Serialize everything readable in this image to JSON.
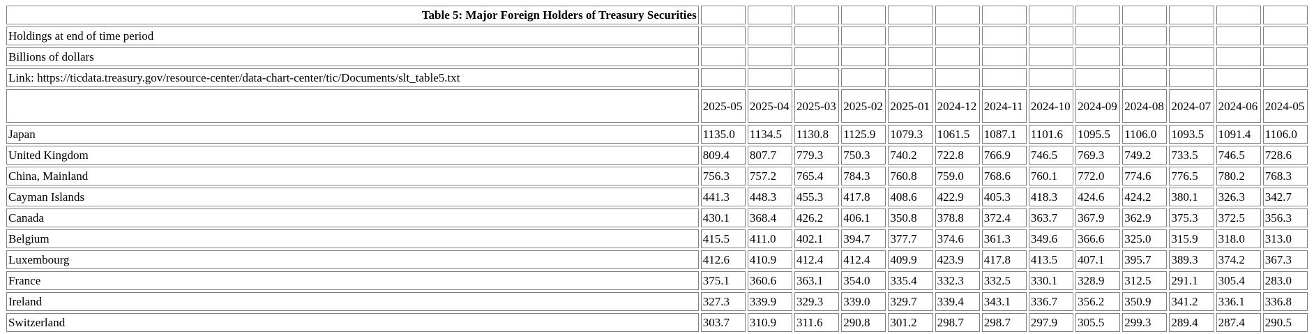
{
  "meta": {
    "title": "Table 5: Major Foreign Holders of Treasury Securities",
    "subtitle": "Holdings at end of time period",
    "unit": "Billions of dollars",
    "link": "Link: https://ticdata.treasury.gov/resource-center/data-chart-center/tic/Documents/slt_table5.txt"
  },
  "periods": [
    "2025-05",
    "2025-04",
    "2025-03",
    "2025-02",
    "2025-01",
    "2024-12",
    "2024-11",
    "2024-10",
    "2024-09",
    "2024-08",
    "2024-07",
    "2024-06",
    "2024-05"
  ],
  "rows": [
    {
      "country": "Japan",
      "values": [
        "1135.0",
        "1134.5",
        "1130.8",
        "1125.9",
        "1079.3",
        "1061.5",
        "1087.1",
        "1101.6",
        "1095.5",
        "1106.0",
        "1093.5",
        "1091.4",
        "1106.0"
      ]
    },
    {
      "country": "United Kingdom",
      "values": [
        "809.4",
        "807.7",
        "779.3",
        "750.3",
        "740.2",
        "722.8",
        "766.9",
        "746.5",
        "769.3",
        "749.2",
        "733.5",
        "746.5",
        "728.6"
      ]
    },
    {
      "country": "China, Mainland",
      "values": [
        "756.3",
        "757.2",
        "765.4",
        "784.3",
        "760.8",
        "759.0",
        "768.6",
        "760.1",
        "772.0",
        "774.6",
        "776.5",
        "780.2",
        "768.3"
      ]
    },
    {
      "country": "Cayman Islands",
      "values": [
        "441.3",
        "448.3",
        "455.3",
        "417.8",
        "408.6",
        "422.9",
        "405.3",
        "418.3",
        "424.6",
        "424.2",
        "380.1",
        "326.3",
        "342.7"
      ]
    },
    {
      "country": "Canada",
      "values": [
        "430.1",
        "368.4",
        "426.2",
        "406.1",
        "350.8",
        "378.8",
        "372.4",
        "363.7",
        "367.9",
        "362.9",
        "375.3",
        "372.5",
        "356.3"
      ]
    },
    {
      "country": "Belgium",
      "values": [
        "415.5",
        "411.0",
        "402.1",
        "394.7",
        "377.7",
        "374.6",
        "361.3",
        "349.6",
        "366.6",
        "325.0",
        "315.9",
        "318.0",
        "313.0"
      ]
    },
    {
      "country": "Luxembourg",
      "values": [
        "412.6",
        "410.9",
        "412.4",
        "412.4",
        "409.9",
        "423.9",
        "417.8",
        "413.5",
        "407.1",
        "395.7",
        "389.3",
        "374.2",
        "367.3"
      ]
    },
    {
      "country": "France",
      "values": [
        "375.1",
        "360.6",
        "363.1",
        "354.0",
        "335.4",
        "332.3",
        "332.5",
        "330.1",
        "328.9",
        "312.5",
        "291.1",
        "305.4",
        "283.0"
      ]
    },
    {
      "country": "Ireland",
      "values": [
        "327.3",
        "339.9",
        "329.3",
        "339.0",
        "329.7",
        "339.4",
        "343.1",
        "336.7",
        "356.2",
        "350.9",
        "341.2",
        "336.1",
        "336.8"
      ]
    },
    {
      "country": "Switzerland",
      "values": [
        "303.7",
        "310.9",
        "311.6",
        "290.8",
        "301.2",
        "298.7",
        "298.7",
        "297.9",
        "305.5",
        "299.3",
        "289.4",
        "287.4",
        "290.5"
      ]
    }
  ]
}
